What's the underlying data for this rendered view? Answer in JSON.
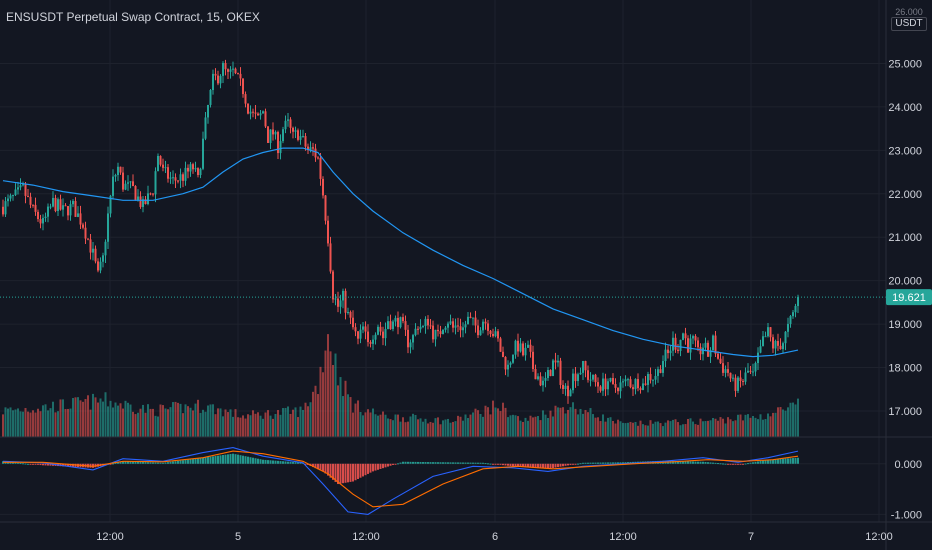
{
  "title": "ENSUSDT Perpetual Swap Contract, 15, OKEX",
  "currency_top": "26.000",
  "currency": "USDT",
  "colors": {
    "background": "#131722",
    "grid": "#1e222d",
    "up": "#26a69a",
    "down": "#ef5350",
    "ma": "#2196f3",
    "macd": "#2962ff",
    "signal": "#ff6d00",
    "text": "#d1d4dc",
    "last_price_bg": "#26a69a"
  },
  "chart_data": [
    {
      "type": "candlestick",
      "y_ticks": [
        "25.000",
        "24.000",
        "23.000",
        "22.000",
        "21.000",
        "20.000",
        "19.000",
        "18.000",
        "17.000"
      ],
      "ylim": [
        16.4,
        26.0
      ],
      "x_ticks": [
        "12:00",
        "5",
        "12:00",
        "6",
        "12:00",
        "7",
        "12:00"
      ],
      "last_price": 19.621,
      "last_price_label": "19.621",
      "price_path": [
        [
          0,
          21.7
        ],
        [
          10,
          21.9
        ],
        [
          20,
          22.1
        ],
        [
          30,
          21.6
        ],
        [
          40,
          21.3
        ],
        [
          50,
          21.8
        ],
        [
          60,
          21.6
        ],
        [
          70,
          21.7
        ],
        [
          80,
          21.3
        ],
        [
          90,
          20.6
        ],
        [
          95,
          20.1
        ],
        [
          100,
          20.5
        ],
        [
          105,
          21.5
        ],
        [
          110,
          22.3
        ],
        [
          115,
          22.6
        ],
        [
          120,
          22.2
        ],
        [
          130,
          22.1
        ],
        [
          140,
          21.7
        ],
        [
          150,
          22.1
        ],
        [
          155,
          22.9
        ],
        [
          160,
          22.5
        ],
        [
          170,
          22.3
        ],
        [
          180,
          22.4
        ],
        [
          190,
          22.6
        ],
        [
          195,
          22.3
        ],
        [
          200,
          23.2
        ],
        [
          205,
          24.0
        ],
        [
          210,
          24.6
        ],
        [
          215,
          24.7
        ],
        [
          220,
          24.9
        ],
        [
          225,
          24.7
        ],
        [
          230,
          24.8
        ],
        [
          235,
          24.6
        ],
        [
          240,
          24.4
        ],
        [
          245,
          24.0
        ],
        [
          250,
          23.8
        ],
        [
          255,
          23.7
        ],
        [
          260,
          23.9
        ],
        [
          265,
          23.3
        ],
        [
          270,
          23.4
        ],
        [
          275,
          23.1
        ],
        [
          280,
          23.5
        ],
        [
          285,
          23.6
        ],
        [
          290,
          23.3
        ],
        [
          295,
          23.4
        ],
        [
          300,
          23.2
        ],
        [
          305,
          23.0
        ],
        [
          310,
          23.0
        ],
        [
          315,
          22.8
        ],
        [
          320,
          22.0
        ],
        [
          325,
          21.0
        ],
        [
          330,
          19.7
        ],
        [
          335,
          19.4
        ],
        [
          340,
          19.6
        ],
        [
          345,
          19.2
        ],
        [
          350,
          18.9
        ],
        [
          355,
          18.6
        ],
        [
          360,
          18.9
        ],
        [
          365,
          18.5
        ],
        [
          370,
          18.8
        ],
        [
          375,
          19.0
        ],
        [
          380,
          18.7
        ],
        [
          385,
          19.1
        ],
        [
          390,
          19.0
        ],
        [
          395,
          19.1
        ],
        [
          400,
          18.9
        ],
        [
          405,
          18.6
        ],
        [
          410,
          18.7
        ],
        [
          415,
          19.0
        ],
        [
          420,
          18.9
        ],
        [
          425,
          19.1
        ],
        [
          430,
          18.8
        ],
        [
          435,
          18.7
        ],
        [
          440,
          19.0
        ],
        [
          445,
          19.1
        ],
        [
          450,
          18.9
        ],
        [
          455,
          19.0
        ],
        [
          460,
          18.9
        ],
        [
          465,
          19.1
        ],
        [
          470,
          19.0
        ],
        [
          475,
          18.9
        ],
        [
          480,
          19.1
        ],
        [
          485,
          19.0
        ],
        [
          490,
          18.8
        ],
        [
          495,
          18.6
        ],
        [
          500,
          18.2
        ],
        [
          505,
          18.0
        ],
        [
          510,
          18.4
        ],
        [
          515,
          18.5
        ],
        [
          520,
          18.3
        ],
        [
          525,
          18.4
        ],
        [
          530,
          18.0
        ],
        [
          535,
          17.8
        ],
        [
          540,
          17.6
        ],
        [
          545,
          17.8
        ],
        [
          550,
          18.1
        ],
        [
          555,
          18.0
        ],
        [
          560,
          17.5
        ],
        [
          565,
          17.5
        ],
        [
          570,
          17.8
        ],
        [
          575,
          17.9
        ],
        [
          580,
          18.0
        ],
        [
          585,
          17.8
        ],
        [
          590,
          17.7
        ],
        [
          595,
          17.6
        ],
        [
          600,
          17.6
        ],
        [
          605,
          17.7
        ],
        [
          610,
          17.5
        ],
        [
          615,
          17.6
        ],
        [
          620,
          17.6
        ],
        [
          625,
          17.7
        ],
        [
          630,
          17.6
        ],
        [
          635,
          17.7
        ],
        [
          640,
          17.6
        ],
        [
          645,
          17.8
        ],
        [
          650,
          17.8
        ],
        [
          655,
          17.9
        ],
        [
          660,
          18.2
        ],
        [
          665,
          18.3
        ],
        [
          670,
          18.6
        ],
        [
          675,
          18.5
        ],
        [
          680,
          18.8
        ],
        [
          685,
          18.5
        ],
        [
          690,
          18.6
        ],
        [
          695,
          18.3
        ],
        [
          700,
          18.5
        ],
        [
          705,
          18.3
        ],
        [
          710,
          18.6
        ],
        [
          715,
          18.2
        ],
        [
          720,
          18.0
        ],
        [
          725,
          17.9
        ],
        [
          730,
          17.6
        ],
        [
          735,
          17.6
        ],
        [
          740,
          17.7
        ],
        [
          745,
          17.9
        ],
        [
          750,
          17.8
        ],
        [
          755,
          18.2
        ],
        [
          760,
          18.6
        ],
        [
          765,
          18.8
        ],
        [
          770,
          18.5
        ],
        [
          775,
          18.5
        ],
        [
          780,
          18.6
        ],
        [
          785,
          18.9
        ],
        [
          790,
          19.2
        ],
        [
          795,
          19.621
        ]
      ],
      "ma_path": [
        [
          0,
          22.3
        ],
        [
          30,
          22.2
        ],
        [
          60,
          22.05
        ],
        [
          90,
          21.95
        ],
        [
          120,
          21.85
        ],
        [
          150,
          21.85
        ],
        [
          180,
          22.0
        ],
        [
          200,
          22.15
        ],
        [
          220,
          22.5
        ],
        [
          240,
          22.8
        ],
        [
          260,
          22.95
        ],
        [
          280,
          23.05
        ],
        [
          300,
          23.05
        ],
        [
          315,
          22.95
        ],
        [
          330,
          22.5
        ],
        [
          350,
          22.0
        ],
        [
          370,
          21.6
        ],
        [
          400,
          21.1
        ],
        [
          430,
          20.7
        ],
        [
          460,
          20.35
        ],
        [
          490,
          20.05
        ],
        [
          520,
          19.7
        ],
        [
          550,
          19.35
        ],
        [
          580,
          19.1
        ],
        [
          610,
          18.85
        ],
        [
          640,
          18.65
        ],
        [
          670,
          18.5
        ],
        [
          700,
          18.4
        ],
        [
          730,
          18.3
        ],
        [
          750,
          18.25
        ],
        [
          770,
          18.28
        ],
        [
          795,
          18.4
        ]
      ]
    },
    {
      "type": "bar",
      "name": "volume",
      "profile": [
        [
          0,
          0.25
        ],
        [
          60,
          0.3
        ],
        [
          100,
          0.35
        ],
        [
          150,
          0.25
        ],
        [
          200,
          0.3
        ],
        [
          240,
          0.2
        ],
        [
          300,
          0.25
        ],
        [
          315,
          0.5
        ],
        [
          325,
          1.0
        ],
        [
          335,
          0.6
        ],
        [
          350,
          0.3
        ],
        [
          380,
          0.2
        ],
        [
          450,
          0.15
        ],
        [
          495,
          0.3
        ],
        [
          520,
          0.15
        ],
        [
          565,
          0.3
        ],
        [
          620,
          0.12
        ],
        [
          700,
          0.15
        ],
        [
          760,
          0.2
        ],
        [
          795,
          0.3
        ]
      ]
    },
    {
      "type": "histogram",
      "name": "macd",
      "y_ticks": [
        "0.000",
        "-1.000"
      ],
      "ylim": [
        -1.15,
        0.45
      ],
      "hist_path": [
        [
          0,
          0.05
        ],
        [
          40,
          -0.03
        ],
        [
          90,
          -0.08
        ],
        [
          120,
          0.05
        ],
        [
          160,
          0.02
        ],
        [
          200,
          0.12
        ],
        [
          230,
          0.2
        ],
        [
          260,
          0.08
        ],
        [
          300,
          0.02
        ],
        [
          320,
          -0.15
        ],
        [
          335,
          -0.4
        ],
        [
          350,
          -0.35
        ],
        [
          370,
          -0.15
        ],
        [
          400,
          0.04
        ],
        [
          440,
          0.03
        ],
        [
          480,
          0.02
        ],
        [
          510,
          -0.05
        ],
        [
          545,
          -0.1
        ],
        [
          580,
          0.02
        ],
        [
          620,
          0.03
        ],
        [
          660,
          0.06
        ],
        [
          700,
          0.04
        ],
        [
          735,
          -0.02
        ],
        [
          765,
          0.08
        ],
        [
          795,
          0.12
        ]
      ],
      "macd_path": [
        [
          0,
          0.05
        ],
        [
          40,
          0.02
        ],
        [
          90,
          -0.12
        ],
        [
          120,
          0.1
        ],
        [
          160,
          0.05
        ],
        [
          200,
          0.22
        ],
        [
          230,
          0.32
        ],
        [
          260,
          0.15
        ],
        [
          300,
          0.02
        ],
        [
          320,
          -0.4
        ],
        [
          345,
          -0.95
        ],
        [
          365,
          -1.0
        ],
        [
          390,
          -0.7
        ],
        [
          430,
          -0.25
        ],
        [
          470,
          -0.05
        ],
        [
          510,
          -0.08
        ],
        [
          545,
          -0.15
        ],
        [
          580,
          -0.05
        ],
        [
          620,
          0.0
        ],
        [
          660,
          0.05
        ],
        [
          700,
          0.12
        ],
        [
          735,
          0.03
        ],
        [
          765,
          0.12
        ],
        [
          795,
          0.25
        ]
      ],
      "signal_path": [
        [
          0,
          0.03
        ],
        [
          40,
          0.03
        ],
        [
          90,
          -0.05
        ],
        [
          120,
          0.05
        ],
        [
          160,
          0.04
        ],
        [
          200,
          0.12
        ],
        [
          230,
          0.25
        ],
        [
          260,
          0.2
        ],
        [
          300,
          0.05
        ],
        [
          325,
          -0.2
        ],
        [
          350,
          -0.6
        ],
        [
          370,
          -0.85
        ],
        [
          400,
          -0.8
        ],
        [
          440,
          -0.4
        ],
        [
          480,
          -0.1
        ],
        [
          515,
          -0.05
        ],
        [
          550,
          -0.1
        ],
        [
          590,
          -0.05
        ],
        [
          630,
          0.0
        ],
        [
          670,
          0.04
        ],
        [
          705,
          0.08
        ],
        [
          740,
          0.05
        ],
        [
          770,
          0.08
        ],
        [
          795,
          0.15
        ]
      ]
    }
  ]
}
